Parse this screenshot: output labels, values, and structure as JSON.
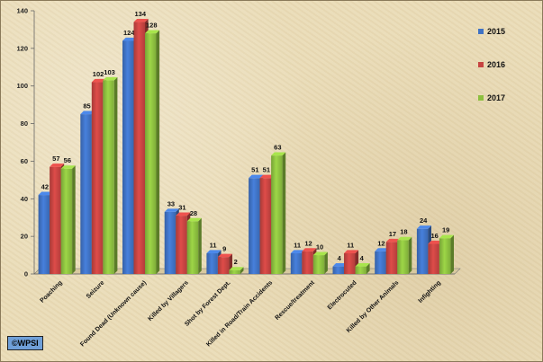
{
  "chart_data": {
    "type": "bar",
    "title": "",
    "xlabel": "",
    "ylabel": "",
    "ylim": [
      0,
      140
    ],
    "yticks": [
      0,
      20,
      40,
      60,
      80,
      100,
      120,
      140
    ],
    "grid": false,
    "legend_position": "right",
    "categories": [
      "Poaching",
      "Seizure",
      "Found Dead (Unknown cause)",
      "Killed by Villagers",
      "Shot by Forest Dept.",
      "Killed in Road/Train Accidents",
      "Rescue/treatment",
      "Electrocuted",
      "Killed by Other Animals",
      "Infighting"
    ],
    "series": [
      {
        "name": "2015",
        "color": "#3f72c4",
        "values": [
          42,
          85,
          124,
          33,
          11,
          51,
          11,
          4,
          12,
          24
        ]
      },
      {
        "name": "2016",
        "color": "#c64441",
        "values": [
          57,
          102,
          134,
          31,
          9,
          51,
          12,
          11,
          17,
          16
        ]
      },
      {
        "name": "2017",
        "color": "#8cbf3f",
        "values": [
          56,
          103,
          128,
          28,
          2,
          63,
          10,
          4,
          18,
          19
        ]
      }
    ]
  },
  "credit": "©WPSI"
}
